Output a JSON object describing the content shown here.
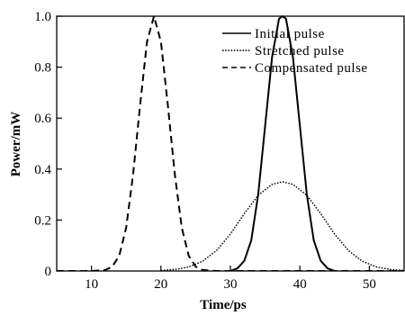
{
  "chart_data": {
    "type": "line",
    "xlabel": "Time/ps",
    "ylabel": "Power/mW",
    "xlim": [
      5,
      55
    ],
    "ylim": [
      0,
      1.0
    ],
    "x_ticks": [
      10,
      20,
      30,
      40,
      50
    ],
    "y_ticks": [
      0,
      0.2,
      0.4,
      0.6,
      0.8,
      1.0
    ],
    "y_tick_labels": [
      "0",
      "0.2",
      "0.4",
      "0.6",
      "0.8",
      "1.0"
    ],
    "grid": false,
    "legend_position": "top-right",
    "series": [
      {
        "name": "Initial pulse",
        "style": "solid",
        "x": [
          30.0,
          31.0,
          32.0,
          33.0,
          34.0,
          35.0,
          36.0,
          37.0,
          37.5,
          38.0,
          39.0,
          40.0,
          41.0,
          42.0,
          43.0,
          44.0,
          45.0
        ],
        "y": [
          0.0,
          0.01,
          0.04,
          0.12,
          0.3,
          0.57,
          0.84,
          0.99,
          1.0,
          0.99,
          0.84,
          0.57,
          0.3,
          0.12,
          0.04,
          0.01,
          0.0
        ]
      },
      {
        "name": "Stretched pulse",
        "style": "dotted",
        "x": [
          20.0,
          22.0,
          24.0,
          26.0,
          28.0,
          30.0,
          32.0,
          34.0,
          36.0,
          37.5,
          39.0,
          41.0,
          43.0,
          45.0,
          47.0,
          49.0,
          51.0,
          53.0,
          55.0
        ],
        "y": [
          0.002,
          0.006,
          0.016,
          0.038,
          0.08,
          0.145,
          0.225,
          0.297,
          0.34,
          0.35,
          0.34,
          0.297,
          0.225,
          0.145,
          0.08,
          0.038,
          0.016,
          0.006,
          0.002
        ],
        "dotted": true
      },
      {
        "name": "Compensated pulse",
        "style": "dashed",
        "x": [
          5.0,
          10.0,
          12.0,
          13.0,
          14.0,
          15.0,
          16.0,
          17.0,
          18.0,
          19.0,
          20.0,
          21.0,
          22.0,
          23.0,
          24.0,
          25.0,
          26.0,
          28.0,
          55.0
        ],
        "y": [
          0.0,
          0.0,
          0.004,
          0.017,
          0.06,
          0.17,
          0.38,
          0.65,
          0.9,
          1.0,
          0.9,
          0.65,
          0.38,
          0.17,
          0.06,
          0.017,
          0.004,
          0.0,
          0.0
        ]
      }
    ]
  }
}
